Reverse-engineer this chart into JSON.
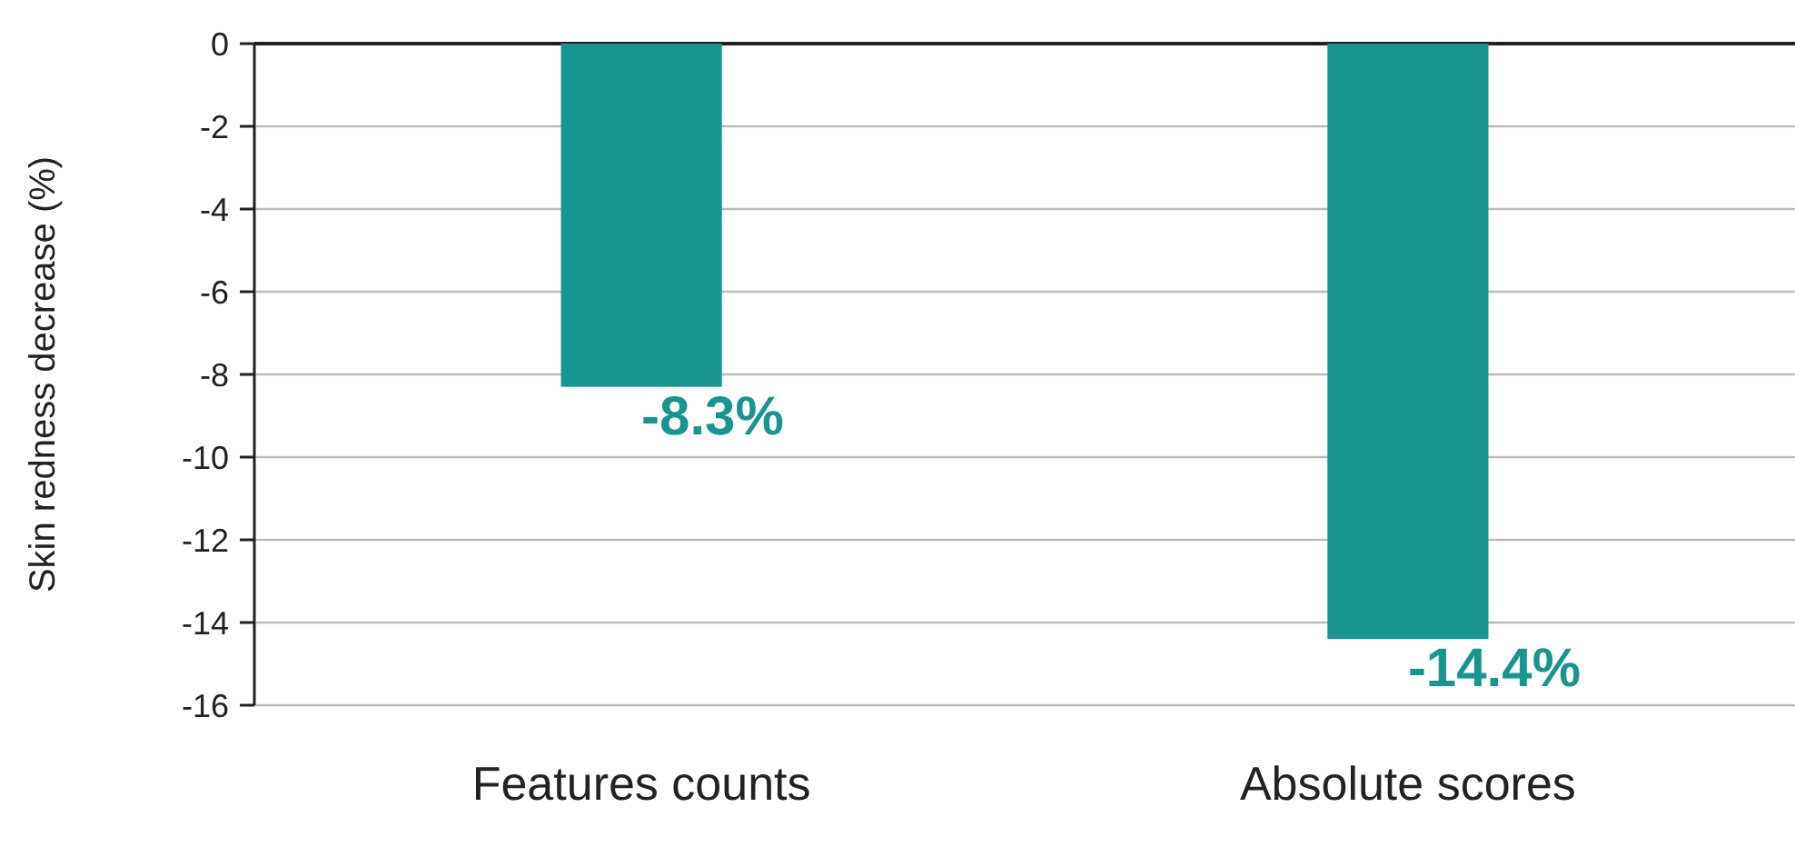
{
  "chart_data": {
    "type": "bar",
    "ylabel": "Skin redness decrease (%)",
    "categories": [
      "Features counts",
      "Absolute scores"
    ],
    "values": [
      -8.3,
      -14.4
    ],
    "value_labels": [
      "-8.3%",
      "-14.4%"
    ],
    "color": "#17968f",
    "ylim": [
      -16,
      0
    ],
    "yticks": [
      0,
      -2,
      -4,
      -6,
      -8,
      -10,
      -12,
      -14,
      -16
    ],
    "grid": "y"
  }
}
